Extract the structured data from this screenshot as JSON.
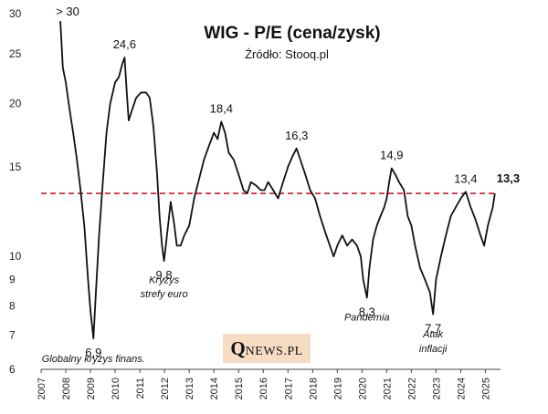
{
  "chart_data": {
    "type": "line",
    "title": "WIG - P/E (cena/zysk)",
    "subtitle": "Źródło: Stooq.pl",
    "y_scale": "log",
    "ylim": [
      6,
      30
    ],
    "xlim": [
      2007,
      2025.5
    ],
    "y_ticks": [
      6,
      7,
      8,
      9,
      10,
      15,
      20,
      25,
      30
    ],
    "x_ticks": [
      2007,
      2008,
      2009,
      2010,
      2011,
      2012,
      2013,
      2014,
      2015,
      2016,
      2017,
      2018,
      2019,
      2020,
      2021,
      2022,
      2023,
      2024,
      2025
    ],
    "reference_line": {
      "value": 13.3,
      "color": "#d7263d",
      "style": "dashed"
    },
    "line_color": "#111111",
    "series": [
      {
        "name": "WIG P/E",
        "points": [
          [
            2007.78,
            29.0
          ],
          [
            2007.88,
            23.5
          ],
          [
            2008.0,
            22.0
          ],
          [
            2008.15,
            19.5
          ],
          [
            2008.3,
            17.5
          ],
          [
            2008.45,
            15.5
          ],
          [
            2008.6,
            13.5
          ],
          [
            2008.75,
            11.5
          ],
          [
            2008.9,
            9.0
          ],
          [
            2009.0,
            7.8
          ],
          [
            2009.08,
            7.2
          ],
          [
            2009.12,
            6.9
          ],
          [
            2009.22,
            8.5
          ],
          [
            2009.35,
            11.0
          ],
          [
            2009.5,
            14.0
          ],
          [
            2009.65,
            17.5
          ],
          [
            2009.8,
            20.0
          ],
          [
            2010.0,
            22.0
          ],
          [
            2010.15,
            22.5
          ],
          [
            2010.3,
            24.0
          ],
          [
            2010.38,
            24.6
          ],
          [
            2010.47,
            21.0
          ],
          [
            2010.55,
            18.5
          ],
          [
            2010.7,
            19.5
          ],
          [
            2010.85,
            20.5
          ],
          [
            2011.05,
            21.0
          ],
          [
            2011.25,
            21.0
          ],
          [
            2011.4,
            20.5
          ],
          [
            2011.55,
            18.0
          ],
          [
            2011.7,
            14.5
          ],
          [
            2011.8,
            12.0
          ],
          [
            2011.9,
            10.5
          ],
          [
            2011.98,
            9.8
          ],
          [
            2012.1,
            11.0
          ],
          [
            2012.25,
            12.8
          ],
          [
            2012.4,
            11.5
          ],
          [
            2012.5,
            10.5
          ],
          [
            2012.65,
            10.5
          ],
          [
            2012.8,
            11.0
          ],
          [
            2013.0,
            11.5
          ],
          [
            2013.2,
            13.0
          ],
          [
            2013.4,
            14.2
          ],
          [
            2013.6,
            15.5
          ],
          [
            2013.8,
            16.5
          ],
          [
            2014.0,
            17.5
          ],
          [
            2014.15,
            17.0
          ],
          [
            2014.3,
            18.4
          ],
          [
            2014.45,
            17.5
          ],
          [
            2014.6,
            16.0
          ],
          [
            2014.8,
            15.5
          ],
          [
            2015.0,
            14.5
          ],
          [
            2015.2,
            13.5
          ],
          [
            2015.35,
            13.3
          ],
          [
            2015.5,
            14.0
          ],
          [
            2015.7,
            13.8
          ],
          [
            2015.9,
            13.5
          ],
          [
            2016.05,
            13.5
          ],
          [
            2016.2,
            14.0
          ],
          [
            2016.4,
            13.5
          ],
          [
            2016.6,
            13.0
          ],
          [
            2016.8,
            14.0
          ],
          [
            2017.0,
            15.0
          ],
          [
            2017.2,
            15.8
          ],
          [
            2017.35,
            16.3
          ],
          [
            2017.5,
            15.5
          ],
          [
            2017.7,
            14.5
          ],
          [
            2017.9,
            13.5
          ],
          [
            2018.1,
            13.0
          ],
          [
            2018.3,
            12.0
          ],
          [
            2018.5,
            11.2
          ],
          [
            2018.7,
            10.5
          ],
          [
            2018.85,
            10.0
          ],
          [
            2019.0,
            10.5
          ],
          [
            2019.2,
            11.0
          ],
          [
            2019.4,
            10.5
          ],
          [
            2019.6,
            10.8
          ],
          [
            2019.8,
            10.5
          ],
          [
            2019.95,
            10.0
          ],
          [
            2020.05,
            9.0
          ],
          [
            2020.2,
            8.3
          ],
          [
            2020.3,
            9.5
          ],
          [
            2020.45,
            10.8
          ],
          [
            2020.6,
            11.5
          ],
          [
            2020.75,
            12.0
          ],
          [
            2020.9,
            12.5
          ],
          [
            2021.0,
            13.0
          ],
          [
            2021.1,
            14.0
          ],
          [
            2021.2,
            14.9
          ],
          [
            2021.35,
            14.5
          ],
          [
            2021.5,
            14.0
          ],
          [
            2021.7,
            13.5
          ],
          [
            2021.85,
            12.0
          ],
          [
            2022.0,
            11.5
          ],
          [
            2022.15,
            10.5
          ],
          [
            2022.35,
            9.5
          ],
          [
            2022.55,
            9.0
          ],
          [
            2022.75,
            8.5
          ],
          [
            2022.88,
            7.7
          ],
          [
            2023.0,
            9.0
          ],
          [
            2023.2,
            10.0
          ],
          [
            2023.4,
            11.0
          ],
          [
            2023.6,
            12.0
          ],
          [
            2023.8,
            12.5
          ],
          [
            2024.0,
            13.0
          ],
          [
            2024.2,
            13.4
          ],
          [
            2024.4,
            12.5
          ],
          [
            2024.6,
            11.8
          ],
          [
            2024.8,
            11.0
          ],
          [
            2024.95,
            10.5
          ],
          [
            2025.1,
            11.5
          ],
          [
            2025.2,
            12.0
          ],
          [
            2025.3,
            12.5
          ],
          [
            2025.38,
            13.3
          ]
        ]
      }
    ],
    "annotations": [
      {
        "text": "> 30",
        "x": 2007.6,
        "y": 30,
        "style": "value"
      },
      {
        "text": "24,6",
        "x": 2010.38,
        "y": 24.6,
        "style": "value"
      },
      {
        "text": "18,4",
        "x": 2014.3,
        "y": 18.4,
        "style": "value"
      },
      {
        "text": "16,3",
        "x": 2017.35,
        "y": 16.3,
        "style": "value"
      },
      {
        "text": "14,9",
        "x": 2021.2,
        "y": 14.9,
        "style": "value"
      },
      {
        "text": "13,4",
        "x": 2024.2,
        "y": 13.4,
        "style": "value"
      },
      {
        "text": "13,3",
        "x": 2025.38,
        "y": 13.3,
        "style": "value-bold"
      },
      {
        "text": "9,8",
        "x": 2011.98,
        "y": 9.8,
        "style": "value"
      },
      {
        "text": "8,3",
        "x": 2020.2,
        "y": 8.3,
        "style": "value"
      },
      {
        "text": "7,7",
        "x": 2022.88,
        "y": 7.7,
        "style": "value"
      },
      {
        "text": "6,9",
        "x": 2009.12,
        "y": 6.9,
        "style": "value"
      },
      {
        "text": "Kryzys",
        "x": 2011.98,
        "y": 9.0,
        "style": "note"
      },
      {
        "text": "strefy  euro",
        "x": 2011.98,
        "y": 8.45,
        "style": "note"
      },
      {
        "text": "Pandemia",
        "x": 2020.2,
        "y": 7.6,
        "style": "note"
      },
      {
        "text": "Atak",
        "x": 2022.88,
        "y": 7.05,
        "style": "note"
      },
      {
        "text": "inflacji",
        "x": 2022.88,
        "y": 6.6,
        "style": "note"
      },
      {
        "text": "Globalny kryzys finans.",
        "x": 2009.12,
        "y": 6.3,
        "style": "note"
      }
    ]
  },
  "logo": {
    "initial": "Q",
    "rest": "NEWS.PL"
  }
}
